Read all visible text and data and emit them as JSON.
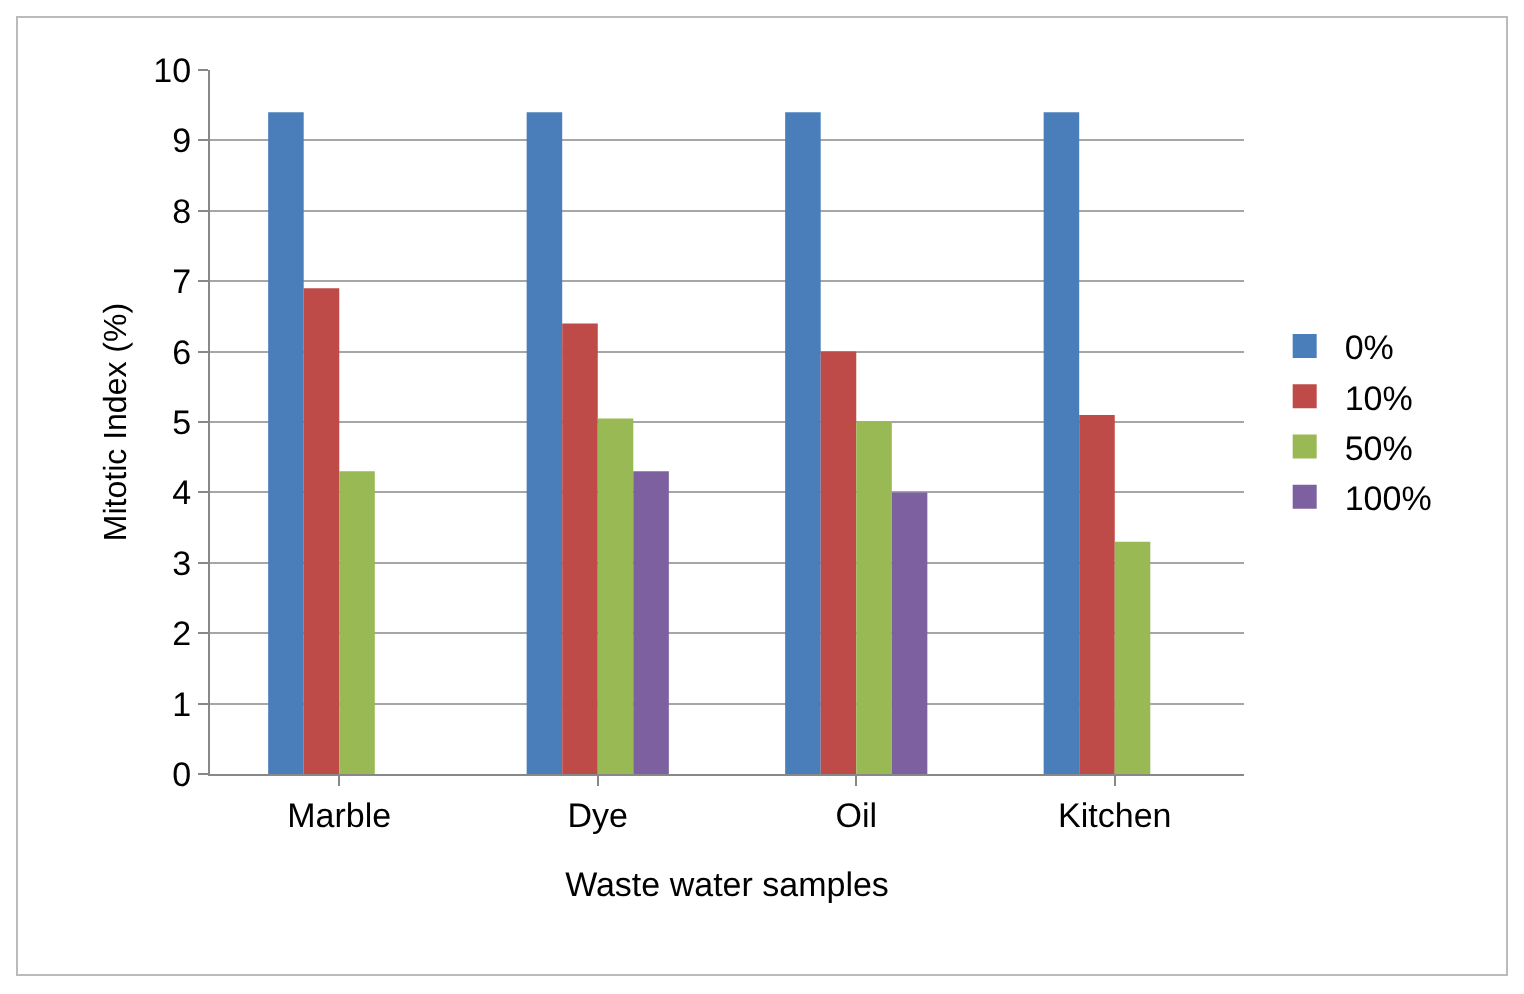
{
  "chart_data": {
    "type": "bar",
    "xlabel": "Waste water samples",
    "ylabel": "Mitotic Index (%)",
    "categories": [
      "Marble",
      "Dye",
      "Oil",
      "Kitchen"
    ],
    "series": [
      {
        "name": "0%",
        "color": "#4a7ebb",
        "values": [
          9.4,
          9.4,
          9.4,
          9.4
        ]
      },
      {
        "name": "10%",
        "color": "#be4b48",
        "values": [
          6.9,
          6.4,
          6.0,
          5.1
        ]
      },
      {
        "name": "50%",
        "color": "#98b954",
        "values": [
          4.3,
          5.05,
          5.0,
          3.3
        ]
      },
      {
        "name": "100%",
        "color": "#7d60a0",
        "values": [
          null,
          4.3,
          4.0,
          null
        ]
      }
    ],
    "ylim": [
      0,
      10
    ],
    "yticks": [
      0,
      1,
      2,
      3,
      4,
      5,
      6,
      7,
      8,
      9,
      10
    ],
    "grid": "y",
    "legend": "right"
  }
}
